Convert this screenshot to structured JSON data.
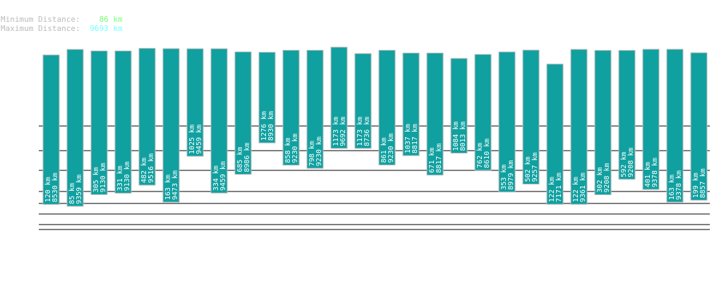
{
  "stats": {
    "min_label": "Minimum Distance:",
    "min_value": "86 km",
    "min_color": "#77ff77",
    "max_label": "Maximum Distance:",
    "max_value": "9693 km",
    "max_color": "#77ffff"
  },
  "chart_data": {
    "type": "bar",
    "subtype": "floating-range",
    "unit": "km",
    "bar_color": "#11a0a0",
    "grid": true,
    "series": [
      {
        "min": 120,
        "max": 8530
      },
      {
        "min": 85,
        "max": 9359
      },
      {
        "min": 305,
        "max": 9130
      },
      {
        "min": 331,
        "max": 9130
      },
      {
        "min": 482,
        "max": 9516
      },
      {
        "min": 163,
        "max": 9473
      },
      {
        "min": 1025,
        "max": 9459
      },
      {
        "min": 334,
        "max": 9459
      },
      {
        "min": 685,
        "max": 8986
      },
      {
        "min": 1276,
        "max": 8930
      },
      {
        "min": 858,
        "max": 9230
      },
      {
        "min": 798,
        "max": 9230
      },
      {
        "min": 1173,
        "max": 9692
      },
      {
        "min": 1173,
        "max": 8736
      },
      {
        "min": 861,
        "max": 9230
      },
      {
        "min": 1037,
        "max": 8817
      },
      {
        "min": 671,
        "max": 8817
      },
      {
        "min": 1084,
        "max": 8013
      },
      {
        "min": 762,
        "max": 8610
      },
      {
        "min": 353,
        "max": 8979
      },
      {
        "min": 502,
        "max": 9257
      },
      {
        "min": 122,
        "max": 7171
      },
      {
        "min": 122,
        "max": 9361
      },
      {
        "min": 302,
        "max": 9208
      },
      {
        "min": 592,
        "max": 9208
      },
      {
        "min": 401,
        "max": 9378
      },
      {
        "min": 163,
        "max": 9378
      },
      {
        "min": 199,
        "max": 8857
      }
    ]
  }
}
